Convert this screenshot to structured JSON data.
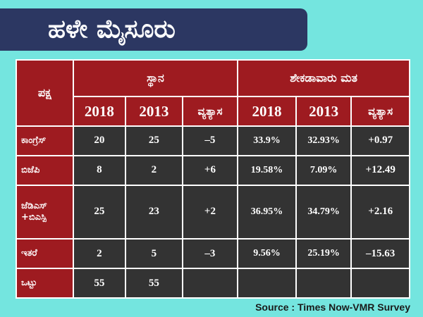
{
  "title": "ಹಳೇ ಮೈಸೂರು",
  "table": {
    "party_header": "ಪಕ್ಷ",
    "seats_header": "ಸ್ಥಾನ",
    "vote_header": "ಶೇಕಡಾವಾರು ಮತ",
    "years": [
      "2018",
      "2013"
    ],
    "diff_label": "ವ್ಯತ್ಯಾಸ",
    "rows": [
      {
        "party": "ಕಾಂಗ್ರೆಸ್",
        "s2018": "20",
        "s2013": "25",
        "sdiff": "–5",
        "v2018": "33.9%",
        "v2013": "32.93%",
        "vdiff": "+0.97"
      },
      {
        "party": "ಬಿಜೆಪಿ",
        "s2018": "8",
        "s2013": "2",
        "sdiff": "+6",
        "v2018": "19.58%",
        "v2013": "7.09%",
        "vdiff": "+12.49"
      },
      {
        "party": "ಜೆಡಿಎಸ್ +ಬಿಎಸ್ಪಿ",
        "s2018": "25",
        "s2013": "23",
        "sdiff": "+2",
        "v2018": "36.95%",
        "v2013": "34.79%",
        "vdiff": "+2.16"
      },
      {
        "party": "ಇತರೆ",
        "s2018": "2",
        "s2013": "5",
        "sdiff": "–3",
        "v2018": "9.56%",
        "v2013": "25.19%",
        "vdiff": "–15.63"
      },
      {
        "party": "ಒಟ್ಟು",
        "s2018": "55",
        "s2013": "55",
        "sdiff": "",
        "v2018": "",
        "v2013": "",
        "vdiff": ""
      }
    ]
  },
  "source": "Source : Times Now-VMR Survey",
  "colors": {
    "background": "#74e5df",
    "banner": "#2c3762",
    "header": "#9e1b20",
    "cell": "#333333"
  }
}
